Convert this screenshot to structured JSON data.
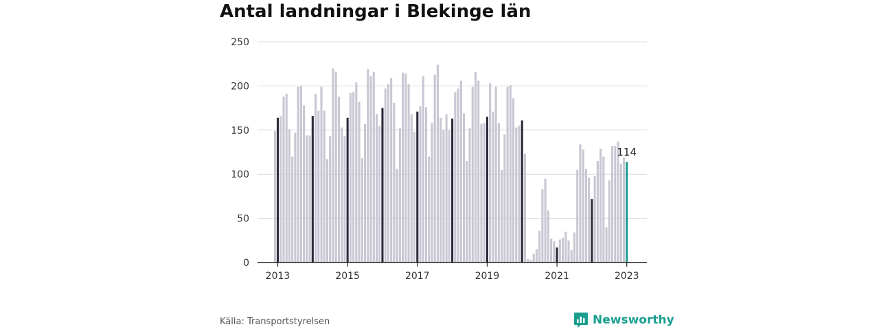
{
  "chart_data": {
    "type": "bar",
    "title": "Antal landningar i Blekinge län",
    "ylim": [
      0,
      250
    ],
    "yticks": [
      "0",
      "50",
      "100",
      "150",
      "200",
      "250"
    ],
    "xticks": [
      "2013",
      "2015",
      "2017",
      "2019",
      "2021",
      "2023"
    ],
    "grid": true,
    "last_value_label": "114",
    "colors": {
      "bar": "#c8c7d3",
      "january": "#2d2b3b",
      "latest": "#1a9e8f",
      "grid": "#d9d9d9",
      "axis": "#222222"
    },
    "categories": [
      "2013-01",
      "2013-02",
      "2013-03",
      "2013-04",
      "2013-05",
      "2013-06",
      "2013-07",
      "2013-08",
      "2013-09",
      "2013-10",
      "2013-11",
      "2013-12",
      "2014-01",
      "2014-02",
      "2014-03",
      "2014-04",
      "2014-05",
      "2014-06",
      "2014-07",
      "2014-08",
      "2014-09",
      "2014-10",
      "2014-11",
      "2014-12",
      "2015-01",
      "2015-02",
      "2015-03",
      "2015-04",
      "2015-05",
      "2015-06",
      "2015-07",
      "2015-08",
      "2015-09",
      "2015-10",
      "2015-11",
      "2015-12",
      "2016-01",
      "2016-02",
      "2016-03",
      "2016-04",
      "2016-05",
      "2016-06",
      "2016-07",
      "2016-08",
      "2016-09",
      "2016-10",
      "2016-11",
      "2016-12",
      "2017-01",
      "2017-02",
      "2017-03",
      "2017-04",
      "2017-05",
      "2017-06",
      "2017-07",
      "2017-08",
      "2017-09",
      "2017-10",
      "2017-11",
      "2017-12",
      "2018-01",
      "2018-02",
      "2018-03",
      "2018-04",
      "2018-05",
      "2018-06",
      "2018-07",
      "2018-08",
      "2018-09",
      "2018-10",
      "2018-11",
      "2018-12",
      "2019-01",
      "2019-02",
      "2019-03",
      "2019-04",
      "2019-05",
      "2019-06",
      "2019-07",
      "2019-08",
      "2019-09",
      "2019-10",
      "2019-11",
      "2019-12",
      "2020-01",
      "2020-02",
      "2020-03",
      "2020-04",
      "2020-05",
      "2020-06",
      "2020-07",
      "2020-08",
      "2020-09",
      "2020-10",
      "2020-11",
      "2020-12",
      "2021-01",
      "2021-02",
      "2021-03",
      "2021-04",
      "2021-05",
      "2021-06",
      "2021-07",
      "2021-08",
      "2021-09",
      "2021-10",
      "2021-11",
      "2021-12",
      "2022-01",
      "2022-02",
      "2022-03",
      "2022-04",
      "2022-05",
      "2022-06",
      "2022-07",
      "2022-08",
      "2022-09",
      "2022-10",
      "2022-11",
      "2022-12",
      "2023-01"
    ],
    "values": [
      164,
      166,
      188,
      191,
      151,
      120,
      147,
      199,
      200,
      178,
      144,
      144,
      166,
      191,
      172,
      199,
      172,
      117,
      143,
      220,
      216,
      188,
      153,
      143,
      164,
      192,
      193,
      204,
      182,
      118,
      157,
      219,
      211,
      216,
      168,
      155,
      175,
      197,
      202,
      209,
      181,
      106,
      152,
      215,
      214,
      202,
      168,
      148,
      171,
      177,
      211,
      176,
      120,
      158,
      213,
      224,
      164,
      150,
      168,
      150,
      163,
      193,
      197,
      206,
      169,
      115,
      152,
      199,
      216,
      206,
      157,
      158,
      165,
      203,
      171,
      199,
      158,
      105,
      145,
      199,
      201,
      186,
      153,
      155,
      161,
      123,
      4,
      3,
      10,
      15,
      36,
      83,
      95,
      59,
      27,
      24,
      17,
      26,
      28,
      35,
      25,
      14,
      34,
      105,
      134,
      128,
      106,
      96,
      72,
      98,
      115,
      129,
      120,
      40,
      93,
      132,
      132,
      137,
      112,
      119,
      114
    ],
    "lead_values": [
      149
    ]
  },
  "source": "Källa: Transportstyrelsen",
  "brand": {
    "name": "Newsworthy",
    "icon": "newsworthy-chart-icon",
    "color": "#1a9e8f"
  }
}
